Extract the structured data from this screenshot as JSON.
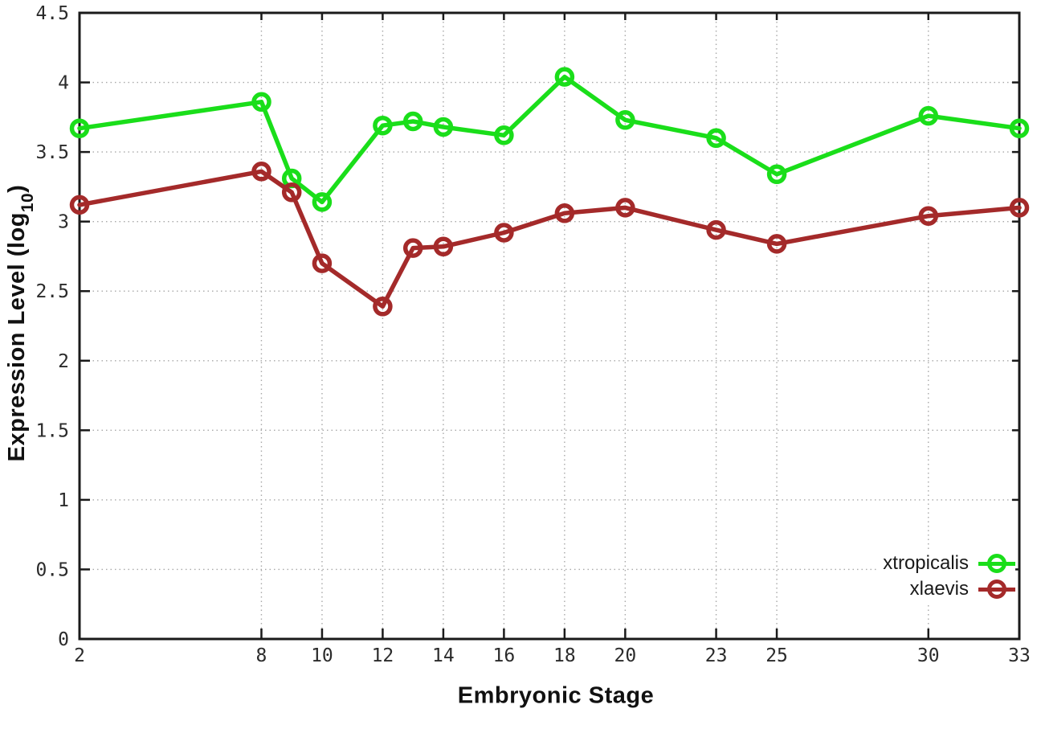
{
  "figure": {
    "background": "#ffffff",
    "border_color": "#1a1a1a",
    "grid_color": "#a8a8a8"
  },
  "axes": {
    "x_title": "Embryonic Stage",
    "y_title_main": "Expression Level (log",
    "y_title_sub": "10",
    "y_title_end": ")"
  },
  "chart_data": {
    "type": "line",
    "title": "",
    "xlabel": "Embryonic Stage",
    "ylabel": "Expression Level (log10)",
    "xlim": [
      2,
      33
    ],
    "ylim": [
      0,
      4.5
    ],
    "grid": true,
    "grid_style": "dotted",
    "legend_position": "bottom-right",
    "x_ticks": [
      2,
      8,
      10,
      12,
      14,
      16,
      18,
      20,
      23,
      25,
      30,
      33
    ],
    "y_ticks": [
      "0",
      "0.5",
      "1",
      "1.5",
      "2",
      "2.5",
      "3",
      "3.5",
      "4",
      "4.5"
    ],
    "x": [
      2,
      8,
      9,
      10,
      12,
      13,
      14,
      16,
      18,
      20,
      23,
      25,
      30,
      33
    ],
    "series": [
      {
        "name": "xtropicalis",
        "color": "#1ade1a",
        "marker": "open-circle",
        "values": [
          3.67,
          3.86,
          3.31,
          3.14,
          3.69,
          3.72,
          3.68,
          3.62,
          4.04,
          3.73,
          3.6,
          3.34,
          3.76,
          3.67
        ]
      },
      {
        "name": "xlaevis",
        "color": "#a42a2a",
        "marker": "open-circle",
        "values": [
          3.12,
          3.36,
          3.21,
          2.7,
          2.39,
          2.81,
          2.82,
          2.92,
          3.06,
          3.1,
          2.94,
          2.84,
          3.04,
          3.1
        ]
      }
    ]
  }
}
